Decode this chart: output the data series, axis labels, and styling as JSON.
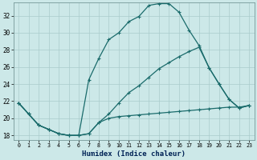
{
  "xlabel": "Humidex (Indice chaleur)",
  "background_color": "#cce8e8",
  "grid_color": "#aacccc",
  "line_color": "#1a6b6b",
  "xlim": [
    -0.5,
    23.5
  ],
  "ylim": [
    17.5,
    33.5
  ],
  "xticks": [
    0,
    1,
    2,
    3,
    4,
    5,
    6,
    7,
    8,
    9,
    10,
    11,
    12,
    13,
    14,
    15,
    16,
    17,
    18,
    19,
    20,
    21,
    22,
    23
  ],
  "yticks": [
    18,
    20,
    22,
    24,
    26,
    28,
    30,
    32
  ],
  "line1_x": [
    0,
    1,
    2,
    3,
    4,
    5,
    6,
    7,
    8,
    9,
    10,
    11,
    12,
    13,
    14,
    15,
    16,
    17,
    18,
    19,
    20,
    21,
    22,
    23
  ],
  "line1_y": [
    21.8,
    20.5,
    19.2,
    18.7,
    18.2,
    18.0,
    18.0,
    24.5,
    27.0,
    29.2,
    30.0,
    31.3,
    31.9,
    33.2,
    33.4,
    33.4,
    32.4,
    30.3,
    28.5,
    25.9,
    24.0,
    22.2,
    21.2,
    21.5
  ],
  "line2_x": [
    0,
    1,
    2,
    3,
    4,
    5,
    6,
    7,
    8,
    9,
    10,
    11,
    12,
    13,
    14,
    15,
    16,
    17,
    18,
    19,
    20,
    21,
    22,
    23
  ],
  "line2_y": [
    21.8,
    20.5,
    19.2,
    18.7,
    18.2,
    18.0,
    18.0,
    18.2,
    19.5,
    20.5,
    21.8,
    23.0,
    23.8,
    24.8,
    25.8,
    26.5,
    27.2,
    27.8,
    28.3,
    25.9,
    24.0,
    22.2,
    21.2,
    21.5
  ],
  "line3_x": [
    0,
    1,
    2,
    3,
    4,
    5,
    6,
    7,
    8,
    9,
    10,
    11,
    12,
    13,
    14,
    15,
    16,
    17,
    18,
    19,
    20,
    21,
    22,
    23
  ],
  "line3_y": [
    21.8,
    20.5,
    19.2,
    18.7,
    18.2,
    18.0,
    18.0,
    18.2,
    19.5,
    20.0,
    20.2,
    20.3,
    20.4,
    20.5,
    20.6,
    20.7,
    20.8,
    20.9,
    21.0,
    21.1,
    21.2,
    21.3,
    21.3,
    21.5
  ]
}
